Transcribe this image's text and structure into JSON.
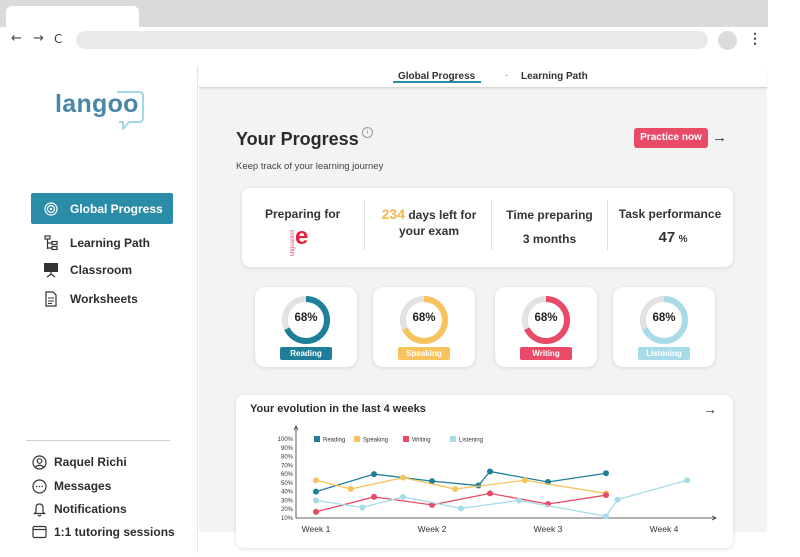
{
  "browser": {
    "back_glyph": "←",
    "forward_glyph": "→",
    "reload_glyph": "C",
    "menu_glyph": "⋮"
  },
  "brand": {
    "logo_text": "langoo",
    "accent": "#2b8ca7"
  },
  "topnav": {
    "tabs": [
      {
        "label": "Global Progress",
        "active": true
      },
      {
        "label": "Learning Path",
        "active": false
      }
    ],
    "separator": "·"
  },
  "sidebar": {
    "items": [
      {
        "label": "Global Progress",
        "icon": "target-icon",
        "active": true
      },
      {
        "label": "Learning Path",
        "icon": "tree-icon",
        "active": false
      },
      {
        "label": "Classroom",
        "icon": "classroom-icon",
        "active": false
      },
      {
        "label": "Worksheets",
        "icon": "document-icon",
        "active": false
      }
    ],
    "bottom": [
      {
        "label": "Raquel Richi",
        "icon": "user-icon"
      },
      {
        "label": "Messages",
        "icon": "chat-icon"
      },
      {
        "label": "Notifications",
        "icon": "bell-icon"
      },
      {
        "label": "1:1 tutoring sessions",
        "icon": "calendar-icon"
      }
    ]
  },
  "header": {
    "title": "Your Progress",
    "info_glyph": "i",
    "subtitle": "Keep track of your learning journey",
    "practice_label": "Practice now",
    "practice_arrow": "→"
  },
  "summary": {
    "preparing_label": "Preparing for",
    "exam_logo": "e",
    "exam_logo_small": "linguaskill",
    "days_number": "234",
    "days_text": "days left for",
    "days_text2": "your exam",
    "time_label": "Time preparing",
    "time_value": "3 months",
    "task_label": "Task performance",
    "task_value": "47",
    "task_unit": "%"
  },
  "skills": [
    {
      "name": "Reading",
      "percent_label": "68%",
      "value": 68,
      "color": "#1f7f9a"
    },
    {
      "name": "Speaking",
      "percent_label": "68%",
      "value": 68,
      "color": "#f7c35d"
    },
    {
      "name": "Writing",
      "percent_label": "68%",
      "value": 68,
      "color": "#e84a67"
    },
    {
      "name": "Listening",
      "percent_label": "68%",
      "value": 68,
      "color": "#a8dbe8"
    }
  ],
  "evolution": {
    "title": "Your evolution in the last 4 weeks",
    "arrow": "→"
  },
  "chart_data": {
    "type": "line",
    "title": "Your evolution in the last 4 weeks",
    "xlabel": "",
    "ylabel": "",
    "y_ticks": [
      "100%",
      "90%",
      "80%",
      "70%",
      "60%",
      "50%",
      "40%",
      "30%",
      "20%",
      "10%"
    ],
    "ylim": [
      10,
      100
    ],
    "x_tick_labels": [
      "Week 1",
      "Week 2",
      "Week 3",
      "Week 4"
    ],
    "legend_position": "top-left",
    "series": [
      {
        "name": "Reading",
        "color": "#1f7f9a",
        "points": [
          [
            1,
            40
          ],
          [
            1.5,
            60
          ],
          [
            2,
            52
          ],
          [
            2.4,
            47
          ],
          [
            2.5,
            63
          ],
          [
            3,
            51
          ],
          [
            3.5,
            61
          ]
        ]
      },
      {
        "name": "Speaking",
        "color": "#f7c35d",
        "points": [
          [
            1,
            53
          ],
          [
            1.3,
            43
          ],
          [
            1.75,
            56
          ],
          [
            2.2,
            43
          ],
          [
            2.8,
            53
          ],
          [
            3.5,
            38
          ]
        ]
      },
      {
        "name": "Writing",
        "color": "#e84a67",
        "points": [
          [
            1,
            17
          ],
          [
            1.5,
            34
          ],
          [
            2,
            25
          ],
          [
            2.5,
            38
          ],
          [
            3,
            26
          ],
          [
            3.5,
            36
          ]
        ]
      },
      {
        "name": "Listening",
        "color": "#a8dbe8",
        "points": [
          [
            1,
            30
          ],
          [
            1.4,
            22
          ],
          [
            1.75,
            34
          ],
          [
            2.25,
            21
          ],
          [
            2.75,
            30
          ],
          [
            3.5,
            12
          ],
          [
            3.6,
            31
          ],
          [
            4.2,
            53
          ]
        ]
      }
    ]
  }
}
